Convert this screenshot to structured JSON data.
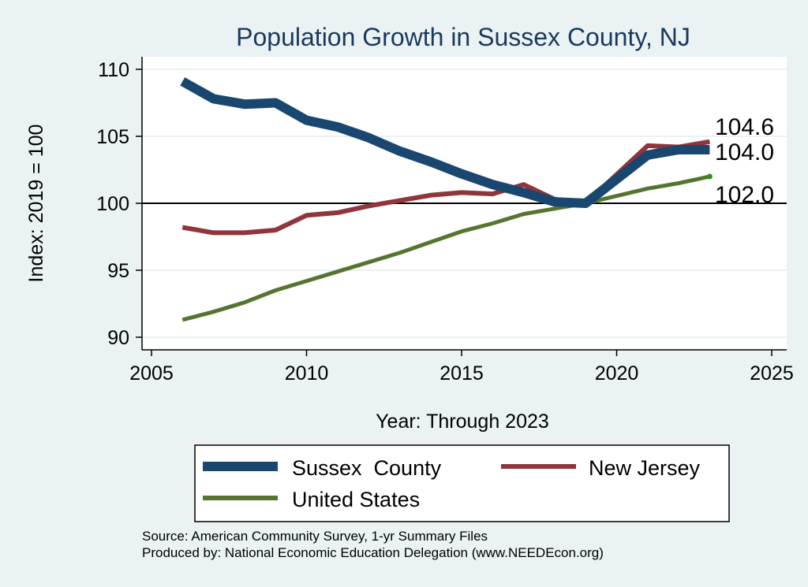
{
  "chart_data": {
    "type": "line",
    "title": "Population Growth in Sussex County, NJ",
    "xlabel": "Year: Through 2023",
    "ylabel": "Index: 2019 = 100",
    "xlim": [
      2005,
      2025
    ],
    "ylim": [
      89,
      111
    ],
    "xticks": [
      2005,
      2010,
      2015,
      2020,
      2025
    ],
    "yticks": [
      90,
      95,
      100,
      105,
      110
    ],
    "reference_line": 100,
    "grid": true,
    "legend_position": "bottom",
    "x": [
      2006,
      2007,
      2008,
      2009,
      2010,
      2011,
      2012,
      2013,
      2014,
      2015,
      2016,
      2017,
      2018,
      2019,
      2021,
      2022,
      2023
    ],
    "series": [
      {
        "name": "Sussex  County",
        "color": "#1a476f",
        "values": [
          109.1,
          107.8,
          107.4,
          107.5,
          106.2,
          105.7,
          104.9,
          103.9,
          103.1,
          102.2,
          101.4,
          100.8,
          100.1,
          100.0,
          103.6,
          104.0,
          104.0
        ],
        "end_label": "104.0"
      },
      {
        "name": "New Jersey",
        "color": "#90353b",
        "values": [
          98.2,
          97.8,
          97.8,
          98.0,
          99.1,
          99.3,
          99.8,
          100.2,
          100.6,
          100.8,
          100.7,
          101.4,
          100.3,
          100.0,
          104.3,
          104.2,
          104.6
        ],
        "end_label": "104.6"
      },
      {
        "name": "United States",
        "color": "#55752f",
        "values": [
          91.3,
          91.9,
          92.6,
          93.5,
          94.2,
          94.9,
          95.6,
          96.3,
          97.1,
          97.9,
          98.5,
          99.2,
          99.6,
          100.0,
          101.1,
          101.5,
          102.0
        ],
        "end_label": "102.0"
      }
    ],
    "source_note": "Source: American Community Survey, 1-yr Summary Files",
    "producer_note": "Produced by: National Economic Education Delegation (www.NEEDEcon.org)"
  }
}
